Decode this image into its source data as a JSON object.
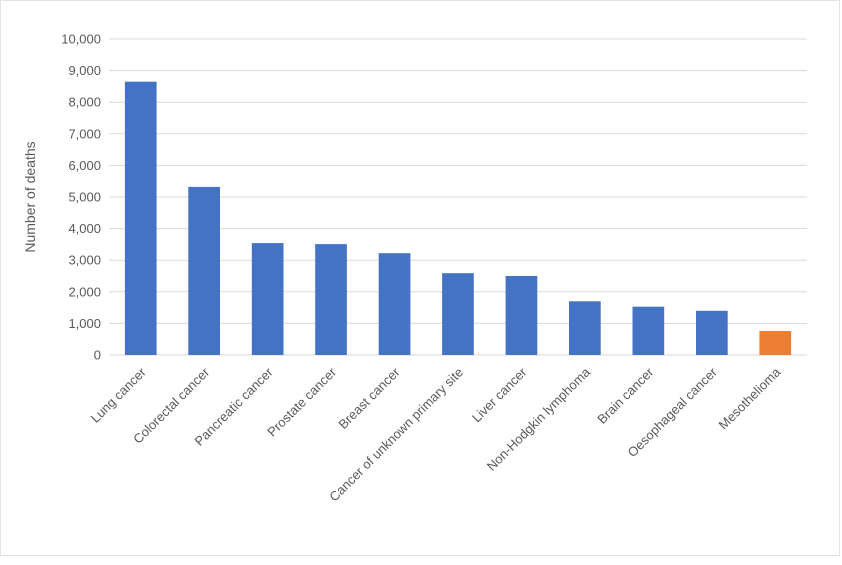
{
  "chart_data": {
    "type": "bar",
    "title": "",
    "xlabel": "",
    "ylabel": "Number of deaths",
    "ylim": [
      0,
      10000
    ],
    "yticks": [
      0,
      1000,
      2000,
      3000,
      4000,
      5000,
      6000,
      7000,
      8000,
      9000,
      10000
    ],
    "ytick_labels": [
      "0",
      "1,000",
      "2,000",
      "3,000",
      "4,000",
      "5,000",
      "6,000",
      "7,000",
      "8,000",
      "9,000",
      "10,000"
    ],
    "grid": true,
    "legend": "none",
    "categories": [
      "Lung cancer",
      "Colorectal cancer",
      "Pancreatic cancer",
      "Prostate cancer",
      "Breast cancer",
      "Cancer of unknown primary site",
      "Liver cancer",
      "Non-Hodgkin lymphoma",
      "Brain cancer",
      "Oesophageal cancer",
      "Mesothelioma"
    ],
    "values": [
      8650,
      5320,
      3540,
      3510,
      3220,
      2590,
      2500,
      1700,
      1530,
      1400,
      760
    ],
    "colors": {
      "default": "#4472c4",
      "highlight": "#ed7d31",
      "grid": "#d9d9d9",
      "text": "#595959"
    },
    "highlight_categories": [
      "Mesothelioma"
    ]
  }
}
